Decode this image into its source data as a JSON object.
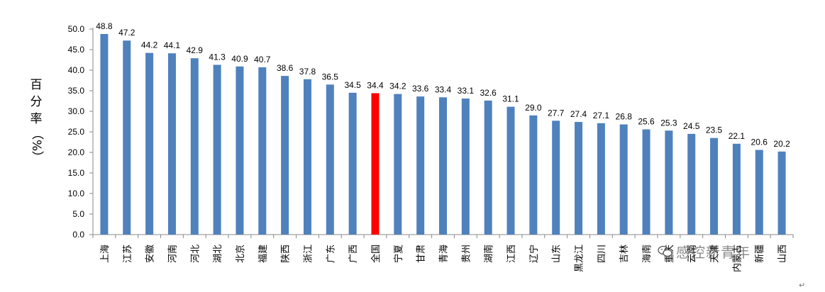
{
  "chart_data": {
    "type": "bar",
    "title": "",
    "xlabel": "",
    "ylabel": "百分率（%）",
    "ylim": [
      0,
      50
    ],
    "yticks": [
      "0.0",
      "5.0",
      "10.0",
      "15.0",
      "20.0",
      "25.0",
      "30.0",
      "35.0",
      "40.0",
      "45.0",
      "50.0"
    ],
    "grid": false,
    "bar_color": "#4f81bd",
    "highlight_color": "#ff0000",
    "highlight_category": "全国",
    "categories": [
      "上海",
      "江苏",
      "安徽",
      "河南",
      "河北",
      "湖北",
      "北京",
      "福建",
      "陕西",
      "浙江",
      "广东",
      "广西",
      "全国",
      "宁夏",
      "甘肃",
      "青海",
      "贵州",
      "湖南",
      "江西",
      "辽宁",
      "山东",
      "黑龙江",
      "四川",
      "吉林",
      "海南",
      "重庆",
      "云南",
      "天津",
      "内蒙古",
      "新疆",
      "山西"
    ],
    "values": [
      48.8,
      47.2,
      44.2,
      44.1,
      42.9,
      41.3,
      40.9,
      40.7,
      38.6,
      37.8,
      36.5,
      34.5,
      34.4,
      34.2,
      33.6,
      33.4,
      33.1,
      32.6,
      31.1,
      29.0,
      27.7,
      27.4,
      27.1,
      26.8,
      25.6,
      25.3,
      24.5,
      23.5,
      22.1,
      20.6,
      20.2
    ],
    "value_labels": [
      "48.8",
      "47.2",
      "44.2",
      "44.1",
      "42.9",
      "41.3",
      "40.9",
      "40.7",
      "38.6",
      "37.8",
      "36.5",
      "34.5",
      "34.4",
      "34.2",
      "33.6",
      "33.4",
      "33.1",
      "32.6",
      "31.1",
      "29.0",
      "27.7",
      "27.4",
      "27.1",
      "26.8",
      "25.6",
      "25.3",
      "24.5",
      "23.5",
      "22.1",
      "20.6",
      "20.2"
    ]
  },
  "ylabel_chars": [
    "百",
    "分",
    "率",
    "（%）"
  ],
  "watermark": "感控新青年",
  "watermark_icon": "wechat-icon",
  "return_mark": "↵"
}
